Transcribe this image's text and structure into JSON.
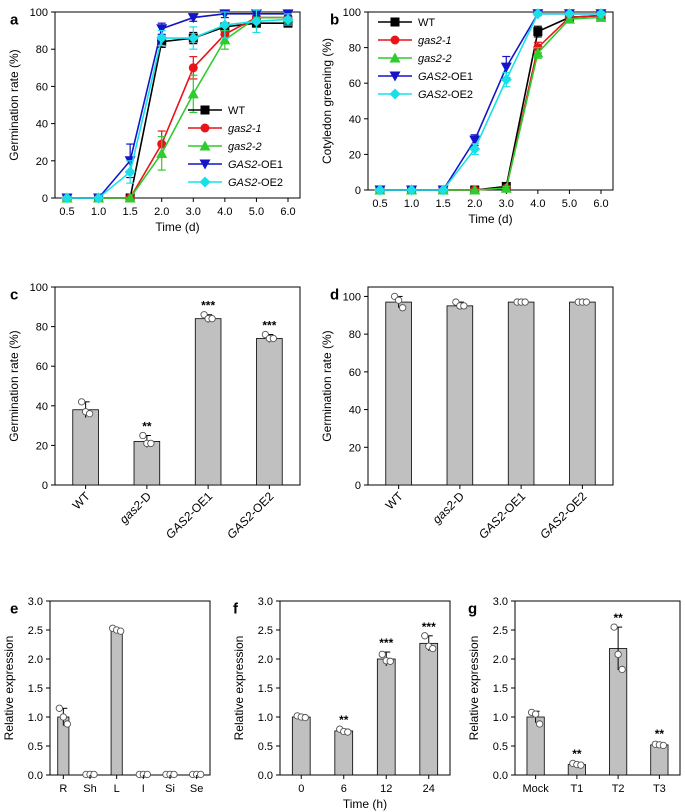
{
  "chart_data": [
    {
      "panel": "a",
      "type": "line",
      "xlabel": "Time (d)",
      "ylabel": "Germination rate (%)",
      "x": [
        "0.5",
        "1.0",
        "1.5",
        "2.0",
        "3.0",
        "4.0",
        "5.0",
        "6.0"
      ],
      "ylim": [
        0,
        100
      ],
      "yticks": [
        0,
        20,
        40,
        60,
        80,
        100
      ],
      "legend_position": "bottom-right",
      "series": [
        {
          "name": "WT",
          "italic": "",
          "suffix": "",
          "color": "#000000",
          "marker": "square",
          "values": [
            0,
            0,
            0,
            84,
            86,
            92,
            94,
            94
          ],
          "err": [
            0,
            0,
            0,
            3,
            3,
            2,
            2,
            2
          ]
        },
        {
          "name": "gas2-1",
          "italic": "gas2-1",
          "suffix": "",
          "color": "#e8141a",
          "marker": "circle",
          "values": [
            0,
            0,
            0,
            29,
            70,
            88,
            97,
            97
          ],
          "err": [
            0,
            0,
            0,
            7,
            6,
            4,
            2,
            2
          ]
        },
        {
          "name": "gas2-2",
          "italic": "gas2-2",
          "suffix": "",
          "color": "#2ecc2e",
          "marker": "triangle-up",
          "values": [
            0,
            0,
            0,
            24,
            56,
            85,
            97,
            97
          ],
          "err": [
            0,
            0,
            0,
            9,
            10,
            5,
            3,
            3
          ]
        },
        {
          "name": "GAS2-OE1",
          "italic": "GAS2",
          "suffix": "-OE1",
          "color": "#1414c8",
          "marker": "triangle-down",
          "values": [
            0,
            0,
            20,
            91,
            97,
            99,
            99,
            99
          ],
          "err": [
            0,
            0,
            9,
            3,
            2,
            2,
            1,
            1
          ]
        },
        {
          "name": "GAS2-OE2",
          "italic": "GAS2",
          "suffix": "-OE2",
          "color": "#19e0e8",
          "marker": "diamond",
          "values": [
            0,
            0,
            14,
            86,
            86,
            93,
            95,
            96
          ],
          "err": [
            0,
            0,
            6,
            4,
            6,
            7,
            6,
            3
          ]
        }
      ]
    },
    {
      "panel": "b",
      "type": "line",
      "xlabel": "Time (d)",
      "ylabel": "Cotyledon greening (%)",
      "x": [
        "0.5",
        "1.0",
        "1.5",
        "2.0",
        "3.0",
        "4.0",
        "5.0",
        "6.0"
      ],
      "ylim": [
        0,
        100
      ],
      "yticks": [
        0,
        20,
        40,
        60,
        80,
        100
      ],
      "legend_position": "top-left",
      "series": [
        {
          "name": "WT",
          "italic": "",
          "suffix": "",
          "color": "#000000",
          "marker": "square",
          "values": [
            0,
            0,
            0,
            0,
            2,
            89,
            97,
            98
          ],
          "err": [
            0,
            0,
            0,
            0,
            2,
            3,
            2,
            1
          ]
        },
        {
          "name": "gas2-1",
          "italic": "gas2-1",
          "suffix": "",
          "color": "#e8141a",
          "marker": "circle",
          "values": [
            0,
            0,
            0,
            0,
            1,
            80,
            97,
            98
          ],
          "err": [
            0,
            0,
            0,
            0,
            1,
            3,
            2,
            1
          ]
        },
        {
          "name": "gas2-2",
          "italic": "gas2-2",
          "suffix": "",
          "color": "#2ecc2e",
          "marker": "triangle-up",
          "values": [
            0,
            0,
            0,
            0,
            1,
            77,
            96,
            97
          ],
          "err": [
            0,
            0,
            0,
            0,
            1,
            3,
            2,
            2
          ]
        },
        {
          "name": "GAS2-OE1",
          "italic": "GAS2",
          "suffix": "-OE1",
          "color": "#1414c8",
          "marker": "triangle-down",
          "values": [
            0,
            0,
            0,
            28,
            69,
            99,
            99,
            99
          ],
          "err": [
            0,
            0,
            0,
            3,
            6,
            1,
            1,
            1
          ]
        },
        {
          "name": "GAS2-OE2",
          "italic": "GAS2",
          "suffix": "-OE2",
          "color": "#19e0e8",
          "marker": "diamond",
          "values": [
            0,
            0,
            0,
            23,
            62,
            99,
            99,
            99
          ],
          "err": [
            0,
            0,
            0,
            3,
            4,
            1,
            1,
            1
          ]
        }
      ]
    },
    {
      "panel": "c",
      "type": "bar",
      "ylabel": "Germination rate (%)",
      "categories": [
        "WT",
        "gas2-D",
        "GAS2-OE1",
        "GAS2-OE2"
      ],
      "category_italic": [
        "",
        "gas2",
        "GAS2",
        "GAS2"
      ],
      "category_suffix": [
        "",
        "-D",
        "-OE1",
        "-OE2"
      ],
      "values": [
        38,
        22,
        84,
        74
      ],
      "err": [
        4,
        3,
        2,
        2
      ],
      "points": [
        [
          42,
          37,
          36
        ],
        [
          25,
          21,
          21
        ],
        [
          86,
          84,
          84
        ],
        [
          76,
          74,
          74
        ]
      ],
      "significance": [
        "",
        "**",
        "***",
        "***"
      ],
      "ylim": [
        0,
        100
      ],
      "yticks": [
        0,
        20,
        40,
        60,
        80,
        100
      ]
    },
    {
      "panel": "d",
      "type": "bar",
      "ylabel": "Germination rate (%)",
      "categories": [
        "WT",
        "gas2-D",
        "GAS2-OE1",
        "GAS2-OE2"
      ],
      "category_italic": [
        "",
        "gas2",
        "GAS2",
        "GAS2"
      ],
      "category_suffix": [
        "",
        "-D",
        "-OE1",
        "-OE2"
      ],
      "values": [
        97,
        95,
        97,
        97
      ],
      "err": [
        3,
        2,
        0,
        0
      ],
      "points": [
        [
          100,
          98,
          94
        ],
        [
          97,
          95,
          95
        ],
        [
          97,
          97,
          97
        ],
        [
          97,
          97,
          97
        ]
      ],
      "significance": [
        "",
        "",
        "",
        ""
      ],
      "ylim": [
        0,
        105
      ],
      "yticks": [
        0,
        20,
        40,
        60,
        80,
        100
      ]
    },
    {
      "panel": "e",
      "type": "bar",
      "ylabel": "Relative expression",
      "xlabel": "",
      "categories": [
        "R",
        "Sh",
        "L",
        "I",
        "Si",
        "Se"
      ],
      "values": [
        1.0,
        0.01,
        2.5,
        0.01,
        0.01,
        0.01
      ],
      "err": [
        0.15,
        0,
        0.03,
        0,
        0,
        0
      ],
      "points": [
        [
          1.15,
          1.0,
          0.88
        ],
        [
          0.01,
          0.01,
          0.01
        ],
        [
          2.53,
          2.5,
          2.48
        ],
        [
          0.01,
          0.01,
          0.01
        ],
        [
          0.01,
          0.01,
          0.01
        ],
        [
          0.01,
          0.01,
          0.01
        ]
      ],
      "significance": [
        "",
        "",
        "",
        "",
        "",
        ""
      ],
      "ylim": [
        0,
        3.0
      ],
      "yticks": [
        "0.0",
        "0.5",
        "1.0",
        "1.5",
        "2.0",
        "2.5",
        "3.0"
      ]
    },
    {
      "panel": "f",
      "type": "bar",
      "ylabel": "Relative expression",
      "xlabel": "Time (h)",
      "categories": [
        "0",
        "6",
        "12",
        "24"
      ],
      "values": [
        1.0,
        0.76,
        2.0,
        2.27
      ],
      "err": [
        0.03,
        0.03,
        0.12,
        0.13
      ],
      "points": [
        [
          1.02,
          1.0,
          0.99
        ],
        [
          0.79,
          0.75,
          0.74
        ],
        [
          2.08,
          1.97,
          1.96
        ],
        [
          2.4,
          2.22,
          2.18
        ]
      ],
      "significance": [
        "",
        "**",
        "***",
        "***"
      ],
      "ylim": [
        0,
        3.0
      ],
      "yticks": [
        "0.0",
        "0.5",
        "1.0",
        "1.5",
        "2.0",
        "2.5",
        "3.0"
      ]
    },
    {
      "panel": "g",
      "type": "bar",
      "ylabel": "Relative expression",
      "xlabel": "",
      "categories": [
        "Mock",
        "T1",
        "T2",
        "T3"
      ],
      "values": [
        1.0,
        0.18,
        2.18,
        0.52
      ],
      "err": [
        0.1,
        0.03,
        0.37,
        0.03
      ],
      "points": [
        [
          1.08,
          1.05,
          0.88
        ],
        [
          0.2,
          0.18,
          0.17
        ],
        [
          2.55,
          2.08,
          1.82
        ],
        [
          0.53,
          0.52,
          0.51
        ]
      ],
      "significance": [
        "",
        "**",
        "**",
        "**"
      ],
      "ylim": [
        0,
        3.0
      ],
      "yticks": [
        "0.0",
        "0.5",
        "1.0",
        "1.5",
        "2.0",
        "2.5",
        "3.0"
      ]
    }
  ]
}
